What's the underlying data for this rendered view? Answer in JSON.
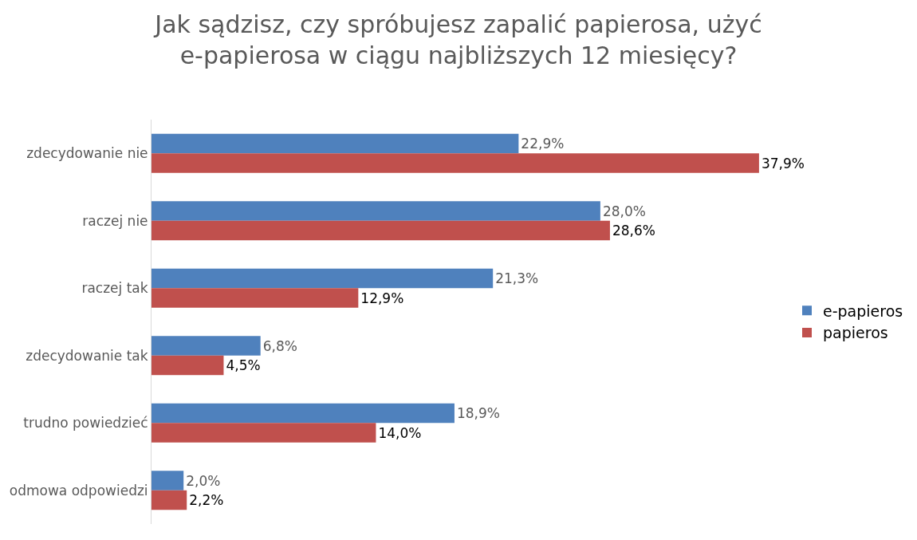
{
  "chart_data": {
    "type": "bar",
    "orientation": "horizontal",
    "title": "Jak sądzisz, czy spróbujesz zapalić papierosa, użyć e-papierosa w ciągu najbliższych 12 miesięcy?",
    "categories": [
      "zdecydowanie nie",
      "raczej nie",
      "raczej tak",
      "zdecydowanie tak",
      "trudno powiedzieć",
      "odmowa odpowiedzi"
    ],
    "series": [
      {
        "name": "e-papieros",
        "color": "#4f81bd",
        "values": [
          22.9,
          28.0,
          21.3,
          6.8,
          18.9,
          2.0
        ],
        "value_labels": [
          "22,9%",
          "28,0%",
          "21,3%",
          "6,8%",
          "18,9%",
          "2,0%"
        ]
      },
      {
        "name": "papieros",
        "color": "#c0504d",
        "values": [
          37.9,
          28.6,
          12.9,
          4.5,
          14.0,
          2.2
        ],
        "value_labels": [
          "37,9%",
          "28,6%",
          "12,9%",
          "4,5%",
          "14,0%",
          "2,2%"
        ]
      }
    ],
    "legend": "right",
    "tick_labels": "y"
  }
}
